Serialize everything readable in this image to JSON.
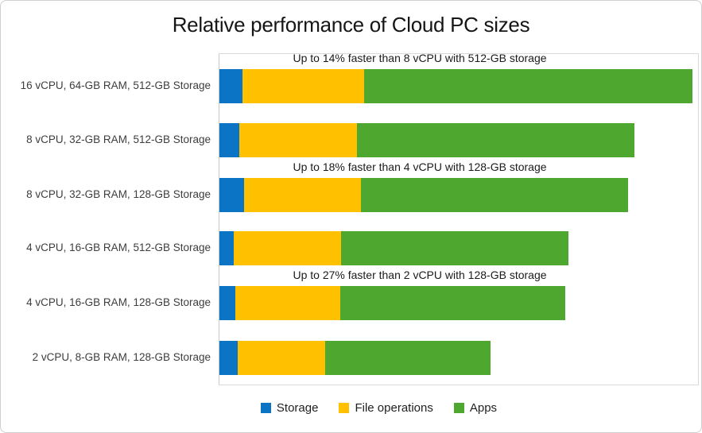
{
  "page": {
    "background": "#ffffff",
    "frame_border_color": "#cfcfcf"
  },
  "chart_data": {
    "type": "bar",
    "orientation": "horizontal",
    "stacked": true,
    "title": "Relative performance of Cloud PC sizes",
    "xlabel": "",
    "ylabel": "",
    "xlim": [
      0,
      101.7
    ],
    "grid": false,
    "legend_position": "bottom",
    "axis_color": "#d9d9d9",
    "categories": [
      "16 vCPU, 64-GB RAM, 512-GB Storage",
      "8 vCPU, 32-GB RAM, 512-GB Storage",
      "8 vCPU, 32-GB RAM, 128-GB Storage",
      "4 vCPU, 16-GB RAM, 512-GB Storage",
      "4 vCPU, 16-GB RAM, 128-GB Storage",
      "2 vCPU, 8-GB RAM, 128-GB Storage"
    ],
    "series": [
      {
        "name": "Storage",
        "color": "#0c74c4",
        "values": [
          4.9,
          4.2,
          5.2,
          3.0,
          3.4,
          3.9
        ]
      },
      {
        "name": "File operations",
        "color": "#ffc000",
        "values": [
          25.8,
          24.9,
          24.7,
          22.7,
          22.2,
          18.5
        ]
      },
      {
        "name": "Apps",
        "color": "#4ea72e",
        "values": [
          69.4,
          58.8,
          56.6,
          48.3,
          47.6,
          35.0
        ]
      }
    ],
    "bar_totals_relative": [
      100.1,
      87.9,
      86.5,
      74.0,
      73.2,
      57.4
    ],
    "annotations": [
      {
        "row": 0,
        "text": "Up to 14% faster than 8 vCPU with 512-GB storage"
      },
      {
        "row": 2,
        "text": "Up to 18% faster than 4 vCPU with 128-GB storage"
      },
      {
        "row": 4,
        "text": "Up to 27% faster than 2 vCPU with 128-GB storage"
      }
    ]
  }
}
